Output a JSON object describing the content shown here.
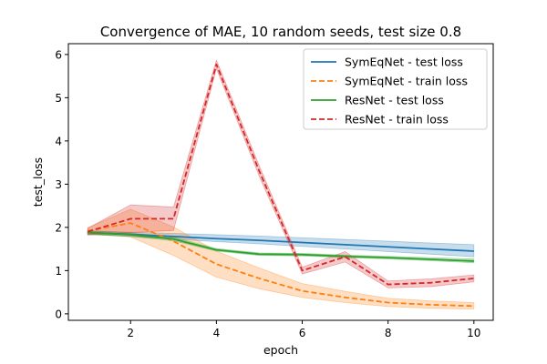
{
  "chart_data": {
    "type": "line",
    "title": "Convergence of MAE, 10 random seeds, test size 0.8",
    "xlabel": "epoch",
    "ylabel": "test_loss",
    "xlim": [
      0.55,
      10.45
    ],
    "ylim": [
      -0.15,
      6.25
    ],
    "xticks": [
      2,
      4,
      6,
      8,
      10
    ],
    "yticks": [
      0,
      1,
      2,
      3,
      4,
      5,
      6
    ],
    "grid": false,
    "legend_position": "top-right",
    "x": [
      1,
      2,
      3,
      4,
      5,
      6,
      7,
      8,
      9,
      10
    ],
    "series": [
      {
        "name": "SymEqNet - test loss",
        "color": "#1f77b4",
        "dash": "solid",
        "values": [
          1.88,
          1.84,
          1.79,
          1.74,
          1.7,
          1.65,
          1.6,
          1.55,
          1.5,
          1.45
        ],
        "band_lower": [
          1.84,
          1.79,
          1.73,
          1.67,
          1.62,
          1.56,
          1.5,
          1.44,
          1.38,
          1.32
        ],
        "band_upper": [
          1.92,
          1.89,
          1.86,
          1.83,
          1.8,
          1.76,
          1.72,
          1.68,
          1.64,
          1.6
        ]
      },
      {
        "name": "SymEqNet - train loss",
        "color": "#ff7f0e",
        "dash": "dashed",
        "values": [
          1.92,
          2.1,
          1.68,
          1.15,
          0.82,
          0.53,
          0.38,
          0.26,
          0.21,
          0.18
        ],
        "band_lower": [
          1.85,
          1.78,
          1.35,
          0.85,
          0.58,
          0.38,
          0.26,
          0.17,
          0.13,
          0.11
        ],
        "band_upper": [
          1.99,
          2.42,
          2.01,
          1.45,
          1.06,
          0.7,
          0.52,
          0.36,
          0.3,
          0.26
        ]
      },
      {
        "name": "ResNet - test loss",
        "color": "#2ca02c",
        "dash": "solid",
        "values": [
          1.88,
          1.83,
          1.73,
          1.48,
          1.38,
          1.37,
          1.33,
          1.3,
          1.26,
          1.22
        ],
        "band_lower": [
          1.84,
          1.79,
          1.69,
          1.45,
          1.35,
          1.34,
          1.3,
          1.27,
          1.23,
          1.18
        ],
        "band_upper": [
          1.92,
          1.87,
          1.77,
          1.51,
          1.41,
          1.4,
          1.36,
          1.33,
          1.3,
          1.27
        ]
      },
      {
        "name": "ResNet - train loss",
        "color": "#d62728",
        "dash": "dashed",
        "values": [
          1.9,
          2.2,
          2.2,
          5.77,
          3.3,
          1.0,
          1.32,
          0.68,
          0.72,
          0.82
        ],
        "band_lower": [
          1.82,
          1.88,
          1.93,
          5.67,
          3.18,
          0.92,
          1.2,
          0.6,
          0.63,
          0.74
        ],
        "band_upper": [
          1.98,
          2.52,
          2.47,
          5.87,
          3.42,
          1.08,
          1.44,
          0.76,
          0.81,
          0.9
        ]
      }
    ]
  }
}
